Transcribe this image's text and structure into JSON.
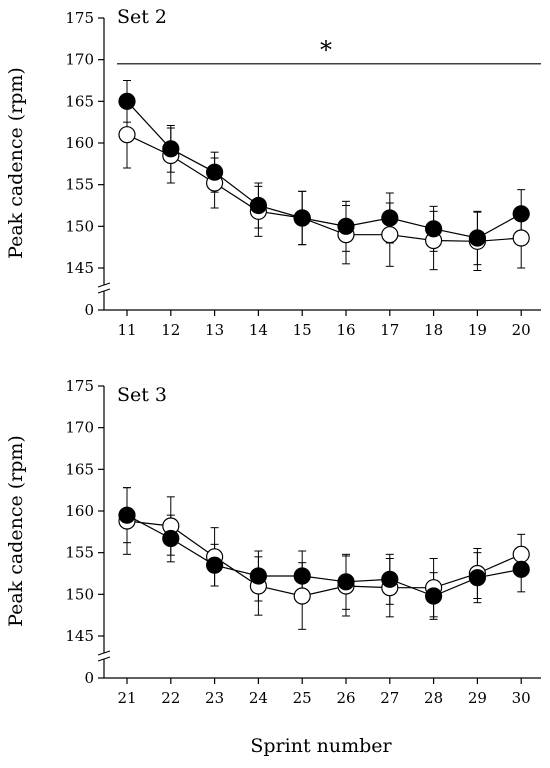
{
  "chart_data": [
    {
      "type": "line",
      "panel_label": "Set 2",
      "ylabel": "Peak cadence (rpm)",
      "xlabel": "",
      "ylim": [
        140,
        175
      ],
      "yticks": [
        0,
        145,
        150,
        155,
        160,
        165,
        170,
        175
      ],
      "axis_break": true,
      "grid": false,
      "categories": [
        "11",
        "12",
        "13",
        "14",
        "15",
        "16",
        "17",
        "18",
        "19",
        "20"
      ],
      "series": [
        {
          "marker": "filled-circle",
          "color": "#000000",
          "values": [
            165.0,
            159.3,
            156.5,
            152.5,
            151.0,
            150.0,
            151.0,
            149.7,
            148.6,
            151.5
          ],
          "error": [
            2.5,
            2.8,
            2.4,
            2.7,
            3.2,
            3.0,
            3.0,
            2.7,
            3.2,
            2.9
          ]
        },
        {
          "marker": "open-circle",
          "color": "#ffffff",
          "values": [
            161.0,
            158.5,
            155.2,
            151.8,
            151.0,
            149.0,
            149.0,
            148.3,
            148.2,
            148.6
          ],
          "error": [
            4.0,
            3.3,
            3.0,
            3.0,
            3.2,
            3.5,
            3.8,
            3.5,
            3.5,
            3.6
          ]
        }
      ],
      "significance": {
        "marker": "*",
        "line_y": 169.5
      }
    },
    {
      "type": "line",
      "panel_label": "Set 3",
      "ylabel": "Peak cadence (rpm)",
      "xlabel": "Sprint number",
      "ylim": [
        140,
        175
      ],
      "yticks": [
        0,
        145,
        150,
        155,
        160,
        165,
        170,
        175
      ],
      "axis_break": true,
      "grid": false,
      "categories": [
        "21",
        "22",
        "23",
        "24",
        "25",
        "26",
        "27",
        "28",
        "29",
        "30"
      ],
      "series": [
        {
          "marker": "filled-circle",
          "color": "#000000",
          "values": [
            159.5,
            156.7,
            153.5,
            152.2,
            152.2,
            151.5,
            151.8,
            149.8,
            152.0,
            153.0
          ],
          "error": [
            3.3,
            2.8,
            2.5,
            3.0,
            3.0,
            3.3,
            3.0,
            2.8,
            3.0,
            2.7
          ]
        },
        {
          "marker": "open-circle",
          "color": "#ffffff",
          "values": [
            158.8,
            158.2,
            154.5,
            151.0,
            149.8,
            151.0,
            150.8,
            150.8,
            152.5,
            154.8
          ],
          "error": [
            4.0,
            3.5,
            3.5,
            3.5,
            4.0,
            3.6,
            3.5,
            3.5,
            3.0,
            2.4
          ]
        }
      ]
    }
  ]
}
